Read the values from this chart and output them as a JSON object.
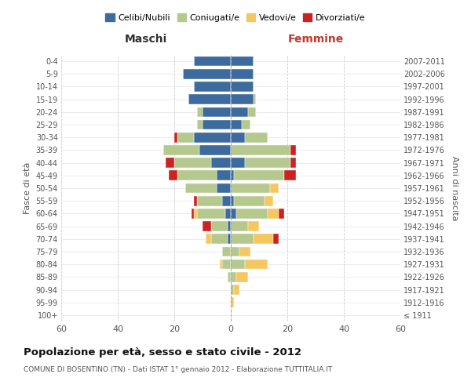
{
  "age_groups": [
    "100+",
    "95-99",
    "90-94",
    "85-89",
    "80-84",
    "75-79",
    "70-74",
    "65-69",
    "60-64",
    "55-59",
    "50-54",
    "45-49",
    "40-44",
    "35-39",
    "30-34",
    "25-29",
    "20-24",
    "15-19",
    "10-14",
    "5-9",
    "0-4"
  ],
  "birth_years": [
    "≤ 1911",
    "1912-1916",
    "1917-1921",
    "1922-1926",
    "1927-1931",
    "1932-1936",
    "1937-1941",
    "1942-1946",
    "1947-1951",
    "1952-1956",
    "1957-1961",
    "1962-1966",
    "1967-1971",
    "1972-1976",
    "1977-1981",
    "1982-1986",
    "1987-1991",
    "1992-1996",
    "1997-2001",
    "2002-2006",
    "2007-2011"
  ],
  "males": {
    "celibi": [
      0,
      0,
      0,
      0,
      0,
      0,
      1,
      1,
      2,
      3,
      5,
      5,
      7,
      11,
      13,
      10,
      10,
      15,
      13,
      17,
      13
    ],
    "coniugati": [
      0,
      0,
      0,
      1,
      3,
      3,
      6,
      6,
      10,
      9,
      11,
      14,
      13,
      13,
      6,
      2,
      2,
      0,
      0,
      0,
      0
    ],
    "vedovi": [
      0,
      0,
      0,
      0,
      1,
      0,
      2,
      0,
      1,
      0,
      0,
      0,
      0,
      0,
      0,
      0,
      0,
      0,
      0,
      0,
      0
    ],
    "divorziati": [
      0,
      0,
      0,
      0,
      0,
      0,
      0,
      3,
      1,
      1,
      0,
      3,
      3,
      0,
      1,
      0,
      0,
      0,
      0,
      0,
      0
    ]
  },
  "females": {
    "nubili": [
      0,
      0,
      0,
      0,
      0,
      0,
      0,
      0,
      2,
      1,
      0,
      1,
      5,
      0,
      5,
      4,
      6,
      8,
      8,
      8,
      8
    ],
    "coniugate": [
      0,
      0,
      1,
      2,
      5,
      3,
      8,
      6,
      11,
      11,
      14,
      18,
      16,
      21,
      8,
      3,
      3,
      1,
      0,
      0,
      0
    ],
    "vedove": [
      0,
      1,
      2,
      4,
      8,
      4,
      7,
      4,
      4,
      3,
      3,
      0,
      0,
      0,
      0,
      0,
      0,
      0,
      0,
      0,
      0
    ],
    "divorziate": [
      0,
      0,
      0,
      0,
      0,
      0,
      2,
      0,
      2,
      0,
      0,
      4,
      2,
      2,
      0,
      0,
      0,
      0,
      0,
      0,
      0
    ]
  },
  "colors": {
    "celibi": "#3d6b9e",
    "coniugati": "#b5c98e",
    "vedovi": "#f5c761",
    "divorziati": "#cc2222"
  },
  "xlim": 60,
  "title": "Popolazione per età, sesso e stato civile - 2012",
  "subtitle": "COMUNE DI BOSENTINO (TN) - Dati ISTAT 1° gennaio 2012 - Elaborazione TUTTITALIA.IT",
  "ylabel_left": "Fasce di età",
  "ylabel_right": "Anni di nascita",
  "xlabel_left": "Maschi",
  "xlabel_right": "Femmine",
  "legend_labels": [
    "Celibi/Nubili",
    "Coniugati/e",
    "Vedovi/e",
    "Divorziati/e"
  ],
  "bg_color": "#ffffff"
}
